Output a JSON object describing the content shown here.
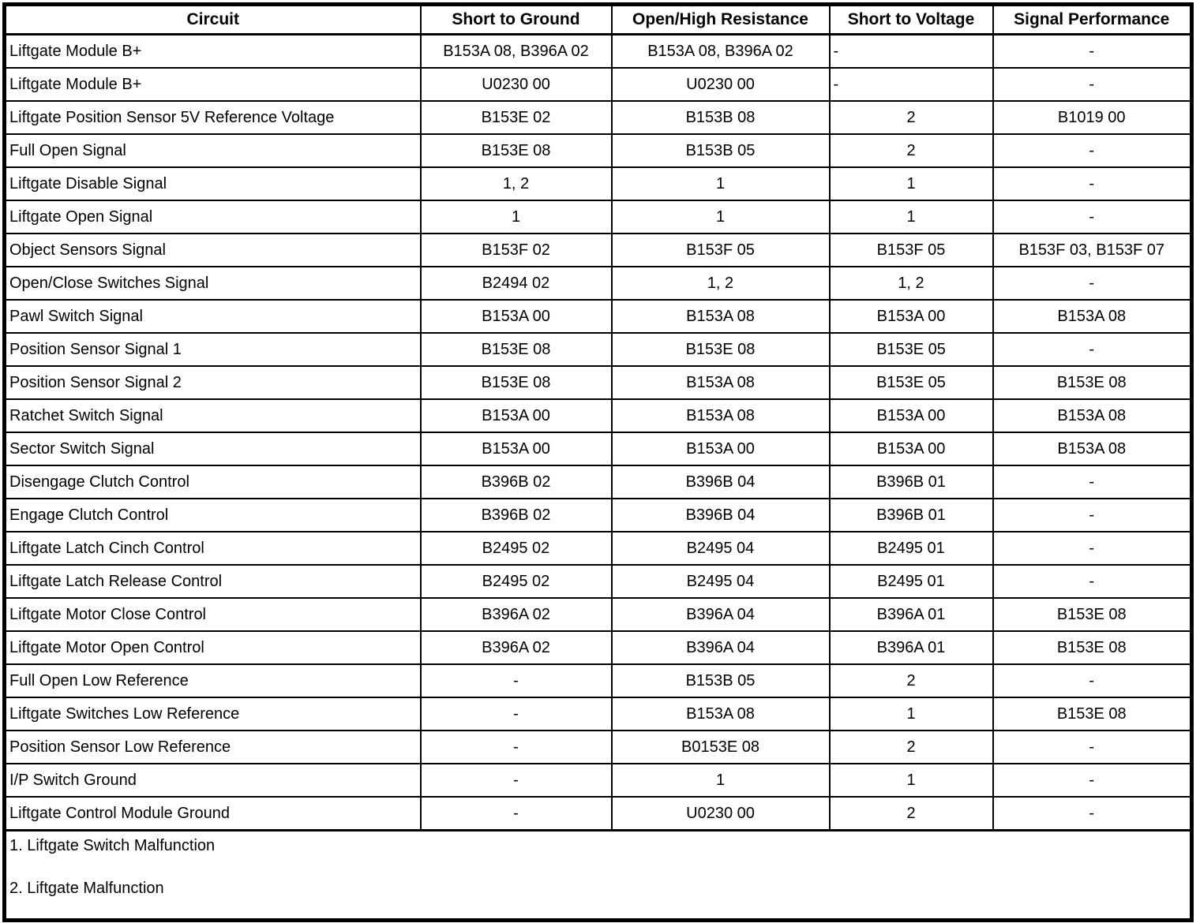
{
  "table": {
    "columns": [
      "Circuit",
      "Short to Ground",
      "Open/High Resistance",
      "Short to Voltage",
      "Signal Performance"
    ],
    "rows": [
      [
        "Liftgate Module B+",
        "B153A 08, B396A 02",
        "B153A 08, B396A 02",
        "-",
        "-"
      ],
      [
        "Liftgate Module B+",
        "U0230 00",
        "U0230 00",
        "-",
        "-"
      ],
      [
        "Liftgate Position Sensor 5V Reference Voltage",
        "B153E 02",
        "B153B 08",
        "2",
        "B1019 00"
      ],
      [
        "Full Open Signal",
        "B153E 08",
        "B153B 05",
        "2",
        "-"
      ],
      [
        "Liftgate Disable Signal",
        "1, 2",
        "1",
        "1",
        "-"
      ],
      [
        "Liftgate Open Signal",
        "1",
        "1",
        "1",
        "-"
      ],
      [
        "Object Sensors Signal",
        "B153F 02",
        "B153F 05",
        "B153F 05",
        "B153F 03, B153F 07"
      ],
      [
        "Open/Close Switches Signal",
        "B2494 02",
        "1, 2",
        "1, 2",
        "-"
      ],
      [
        "Pawl Switch Signal",
        "B153A 00",
        "B153A 08",
        "B153A 00",
        "B153A 08"
      ],
      [
        "Position Sensor Signal 1",
        "B153E 08",
        "B153E 08",
        "B153E 05",
        "-"
      ],
      [
        "Position Sensor Signal 2",
        "B153E 08",
        "B153A 08",
        "B153E 05",
        "B153E 08"
      ],
      [
        "Ratchet Switch Signal",
        "B153A 00",
        "B153A 08",
        "B153A 00",
        "B153A 08"
      ],
      [
        "Sector Switch Signal",
        "B153A 00",
        "B153A 00",
        "B153A 00",
        "B153A 08"
      ],
      [
        "Disengage Clutch Control",
        "B396B 02",
        "B396B 04",
        "B396B 01",
        "-"
      ],
      [
        "Engage Clutch Control",
        "B396B 02",
        "B396B 04",
        "B396B 01",
        "-"
      ],
      [
        "Liftgate Latch Cinch Control",
        "B2495 02",
        "B2495 04",
        "B2495 01",
        "-"
      ],
      [
        "Liftgate Latch Release Control",
        "B2495 02",
        "B2495 04",
        "B2495 01",
        "-"
      ],
      [
        "Liftgate Motor Close Control",
        "B396A 02",
        "B396A 04",
        "B396A 01",
        "B153E 08"
      ],
      [
        "Liftgate Motor Open Control",
        "B396A 02",
        "B396A 04",
        "B396A 01",
        "B153E 08"
      ],
      [
        "Full Open Low Reference",
        "-",
        "B153B 05",
        "2",
        "-"
      ],
      [
        "Liftgate Switches Low Reference",
        "-",
        "B153A 08",
        "1",
        "B153E 08"
      ],
      [
        "Position Sensor Low Reference",
        "-",
        "B0153E 08",
        "2",
        "-"
      ],
      [
        "I/P Switch Ground",
        "-",
        "1",
        "1",
        "-"
      ],
      [
        "Liftgate Control Module Ground",
        "-",
        "U0230 00",
        "2",
        "-"
      ]
    ],
    "left_aligned_cells": [
      {
        "row": 0,
        "col": 3
      },
      {
        "row": 1,
        "col": 3
      }
    ],
    "footnotes": [
      "1. Liftgate Switch Malfunction",
      "2. Liftgate Malfunction"
    ]
  }
}
